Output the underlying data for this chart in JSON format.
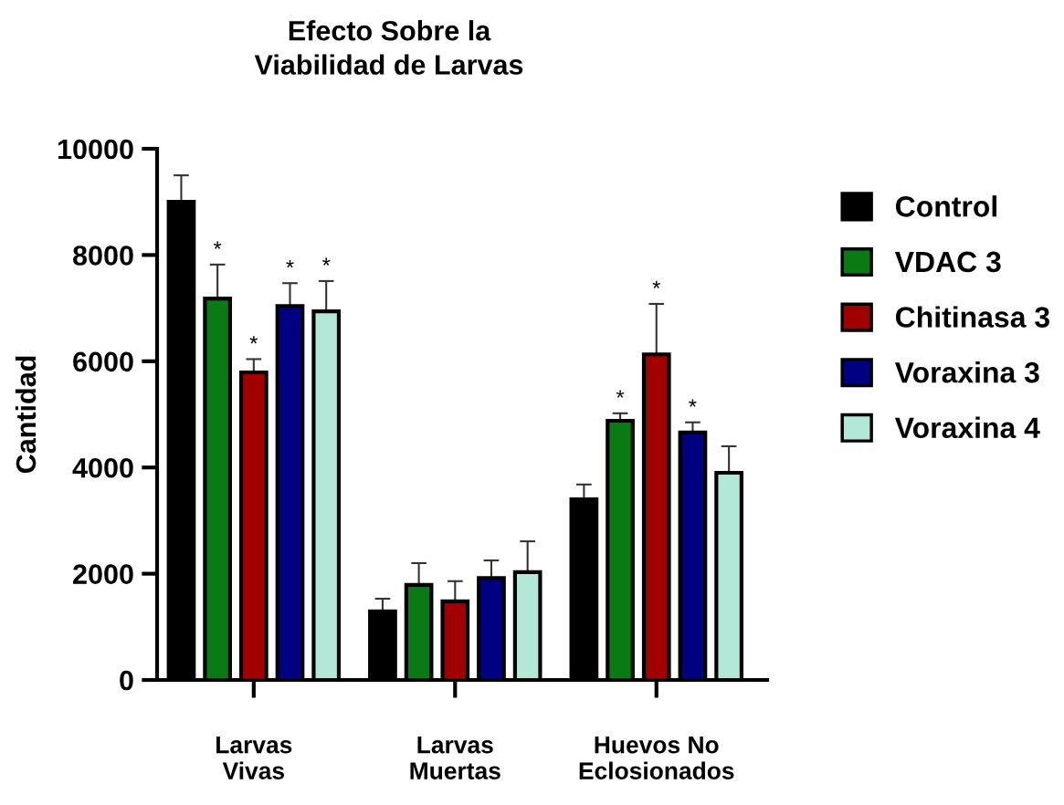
{
  "chart_data": {
    "type": "bar",
    "title": "Efecto Sobre la\nViabilidad de Larvas",
    "ylabel": "Cantidad",
    "categories": [
      "Larvas\nVivas",
      "Larvas\nMuertas",
      "Huevos No\nEclosionados"
    ],
    "series": [
      {
        "name": "Control",
        "color": "#000000",
        "values": [
          9000,
          1290,
          3400
        ],
        "errors": [
          500,
          240,
          280
        ]
      },
      {
        "name": "VDAC 3",
        "color": "#0a7a14",
        "values": [
          7180,
          1790,
          4880
        ],
        "errors": [
          640,
          410,
          140
        ],
        "value_labels": [
          "*",
          null,
          "*"
        ]
      },
      {
        "name": "Chitinasa 3",
        "color": "#a00000",
        "values": [
          5790,
          1480,
          6130
        ],
        "errors": [
          250,
          380,
          950
        ],
        "value_labels": [
          "*",
          null,
          "*"
        ]
      },
      {
        "name": "Voraxina 3",
        "color": "#000080",
        "values": [
          7040,
          1920,
          4660
        ],
        "errors": [
          430,
          330,
          190
        ],
        "value_labels": [
          "*",
          null,
          "*"
        ]
      },
      {
        "name": "Voraxina 4",
        "color": "#b3e8d8",
        "values": [
          6940,
          2030,
          3900
        ],
        "errors": [
          570,
          580,
          500
        ],
        "value_labels": [
          "*",
          null,
          null
        ]
      }
    ],
    "ylim": [
      0,
      10000
    ],
    "yticks": [
      0,
      2000,
      4000,
      6000,
      8000,
      10000
    ],
    "grid": false,
    "legend": "right"
  }
}
